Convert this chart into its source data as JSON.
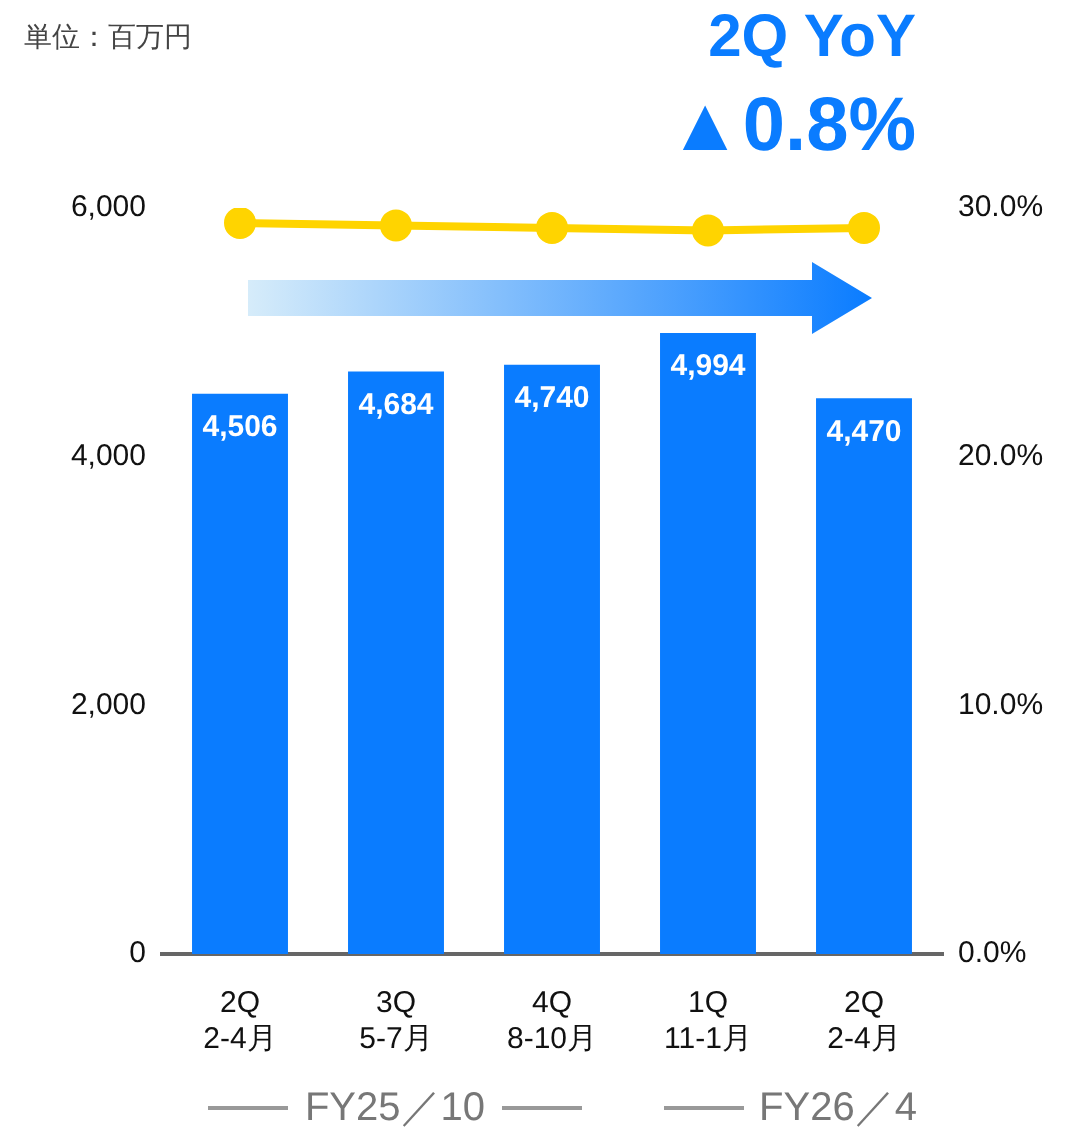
{
  "chart_data": {
    "type": "bar",
    "categories": [
      "2Q\n2-4月",
      "3Q\n5-7月",
      "4Q\n8-10月",
      "1Q\n11-1月",
      "2Q\n2-4月"
    ],
    "series": [
      {
        "color": "#0a7cff",
        "values": [
          4506,
          4684,
          4740,
          4994,
          4470
        ],
        "value_labels": [
          "4,506",
          "4,684",
          "4,740",
          "4,994",
          "4,470"
        ]
      },
      {
        "type": "line",
        "axis": "y2",
        "color": "#ffd400",
        "values": [
          29.4,
          29.3,
          29.2,
          29.1,
          29.2
        ]
      }
    ],
    "ylim": [
      0,
      6000
    ],
    "yticks": [
      {
        "value": 0,
        "label": "0"
      },
      {
        "value": 2000,
        "label": "2,000"
      },
      {
        "value": 4000,
        "label": "4,000"
      },
      {
        "value": 6000,
        "label": "6,000"
      }
    ],
    "y2lim": [
      0,
      30
    ],
    "y2ticks": [
      {
        "value": 0,
        "label": "0.0%"
      },
      {
        "value": 10,
        "label": "10.0%"
      },
      {
        "value": 20,
        "label": "20.0%"
      },
      {
        "value": 30,
        "label": "30.0%"
      }
    ],
    "grid": false,
    "legend": false,
    "marker": "circle",
    "annotations": [
      "単位：百万円",
      "2Q YoY",
      "▲0.8%",
      "FY25／10",
      "FY26／4"
    ]
  }
}
